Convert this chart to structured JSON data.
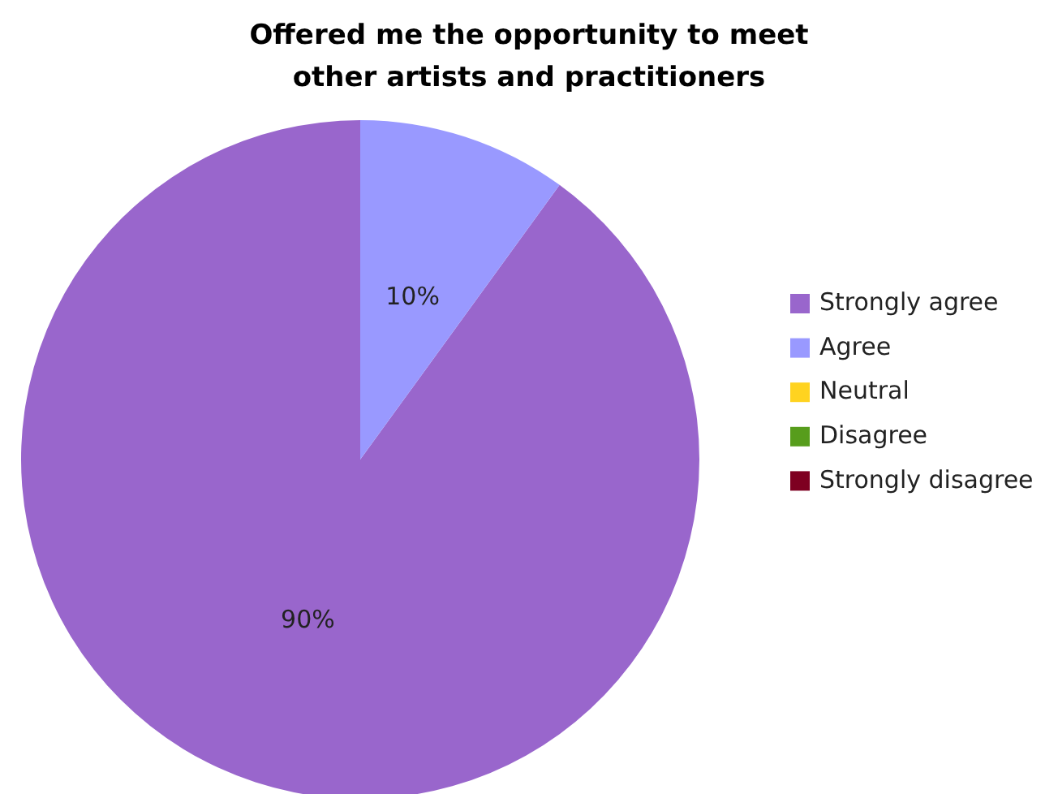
{
  "chart_data": {
    "type": "pie",
    "title": "Offered me the opportunity to meet\nother artists and practitioners",
    "categories": [
      "Strongly agree",
      "Agree",
      "Neutral",
      "Disagree",
      "Strongly disagree"
    ],
    "values": [
      90,
      10,
      0,
      0,
      0
    ],
    "colors": [
      "#9966cc",
      "#9999ff",
      "#ffd320",
      "#579d1c",
      "#7e0021"
    ],
    "value_labels": [
      "90%",
      "10%",
      null,
      null,
      null
    ],
    "legend": "right"
  }
}
